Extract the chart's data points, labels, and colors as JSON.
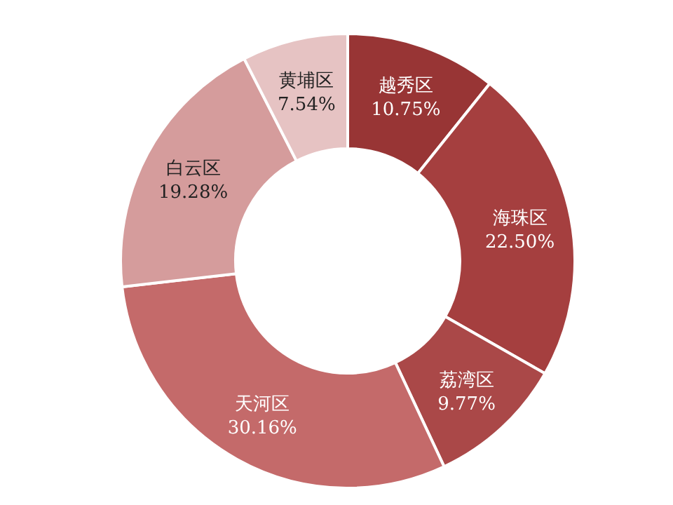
{
  "chart_data": {
    "type": "donut",
    "categories": [
      "越秀区",
      "海珠区",
      "荔湾区",
      "天河区",
      "白云区",
      "黄埔区"
    ],
    "values": [
      10.75,
      22.5,
      9.77,
      30.16,
      19.28,
      7.54
    ],
    "colors": [
      "#983535",
      "#a53f3f",
      "#aa4848",
      "#c46a6a",
      "#d59c9c",
      "#e6c3c3"
    ],
    "value_labels": [
      "10.75%",
      "22.50%",
      "9.77%",
      "30.16%",
      "19.28%",
      "7.54%"
    ]
  }
}
